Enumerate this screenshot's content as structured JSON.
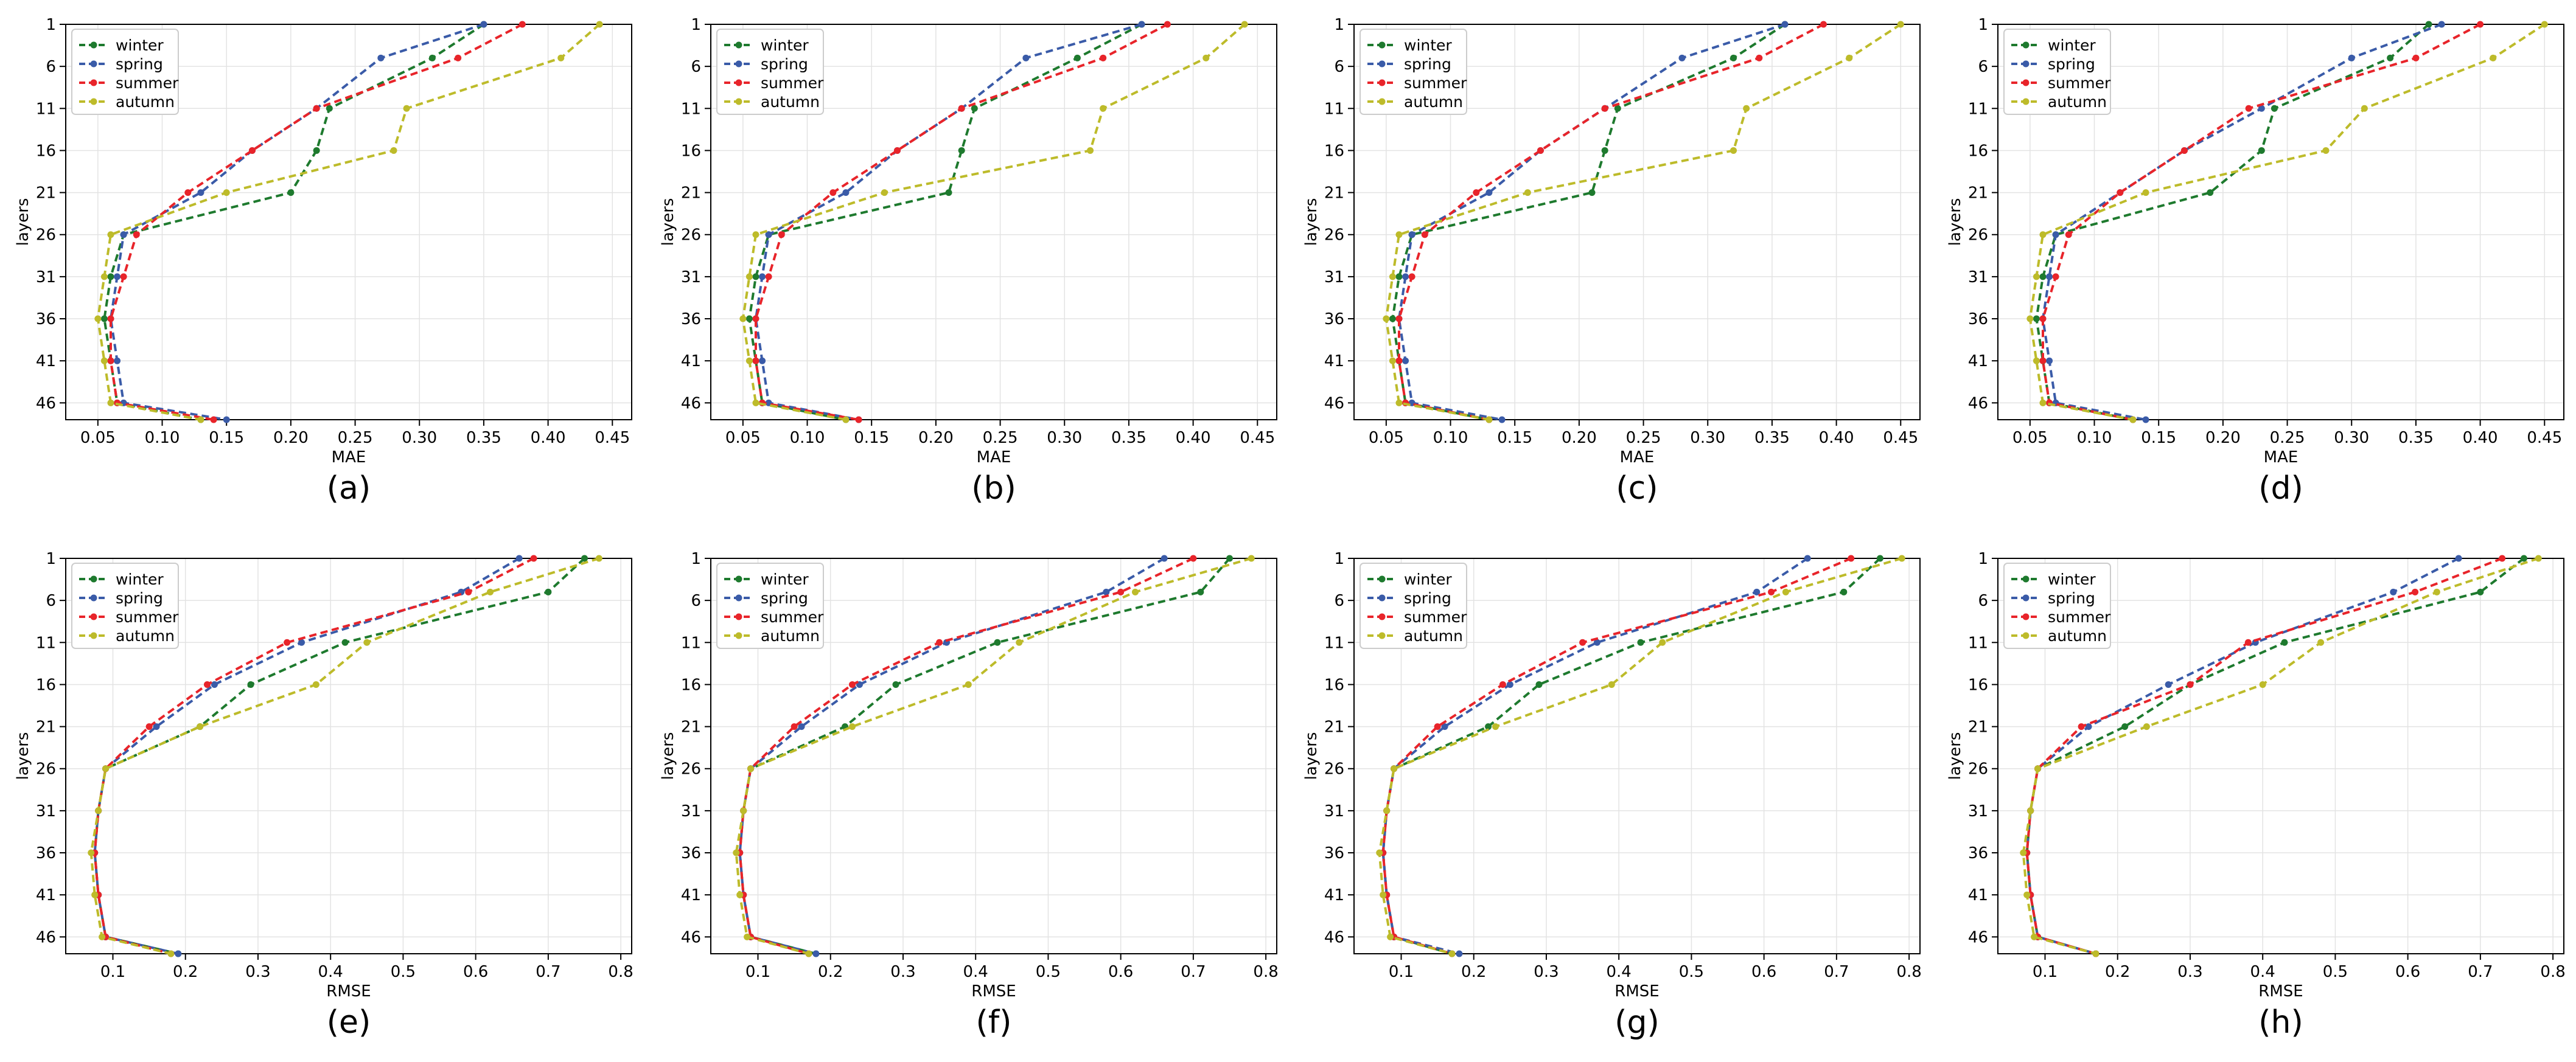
{
  "chart_data": [
    {
      "type": "line",
      "caption": "(a)",
      "xlabel": "MAE",
      "ylabel": "layers",
      "xlim": [
        0.025,
        0.465
      ],
      "xticks": [
        "0.05",
        "0.10",
        "0.15",
        "0.20",
        "0.25",
        "0.30",
        "0.35",
        "0.40",
        "0.45"
      ],
      "ylim": [
        1,
        48
      ],
      "yticks": [
        "1",
        "6",
        "11",
        "16",
        "21",
        "26",
        "31",
        "36",
        "41",
        "46"
      ],
      "legend": [
        "winter",
        "spring",
        "summer",
        "autumn"
      ],
      "x": [
        1,
        5,
        11,
        16,
        21,
        26,
        31,
        36,
        41,
        46,
        48
      ],
      "series": [
        {
          "name": "winter",
          "color": "#1e7a2e",
          "values": [
            0.35,
            0.31,
            0.23,
            0.22,
            0.2,
            0.07,
            0.06,
            0.055,
            0.06,
            0.065,
            0.13
          ]
        },
        {
          "name": "spring",
          "color": "#3a5ba8",
          "values": [
            0.35,
            0.27,
            0.22,
            0.17,
            0.13,
            0.07,
            0.065,
            0.06,
            0.065,
            0.07,
            0.15
          ]
        },
        {
          "name": "summer",
          "color": "#e8242a",
          "values": [
            0.38,
            0.33,
            0.22,
            0.17,
            0.12,
            0.08,
            0.07,
            0.06,
            0.06,
            0.065,
            0.14
          ]
        },
        {
          "name": "autumn",
          "color": "#bdbb2a",
          "values": [
            0.44,
            0.41,
            0.29,
            0.28,
            0.15,
            0.06,
            0.055,
            0.05,
            0.055,
            0.06,
            0.13
          ]
        }
      ]
    },
    {
      "type": "line",
      "caption": "(b)",
      "xlabel": "MAE",
      "ylabel": "layers",
      "xlim": [
        0.025,
        0.465
      ],
      "xticks": [
        "0.05",
        "0.10",
        "0.15",
        "0.20",
        "0.25",
        "0.30",
        "0.35",
        "0.40",
        "0.45"
      ],
      "ylim": [
        1,
        48
      ],
      "yticks": [
        "1",
        "6",
        "11",
        "16",
        "21",
        "26",
        "31",
        "36",
        "41",
        "46"
      ],
      "legend": [
        "winter",
        "spring",
        "summer",
        "autumn"
      ],
      "x": [
        1,
        5,
        11,
        16,
        21,
        26,
        31,
        36,
        41,
        46,
        48
      ],
      "series": [
        {
          "name": "winter",
          "color": "#1e7a2e",
          "values": [
            0.36,
            0.31,
            0.23,
            0.22,
            0.21,
            0.07,
            0.06,
            0.055,
            0.06,
            0.065,
            0.13
          ]
        },
        {
          "name": "spring",
          "color": "#3a5ba8",
          "values": [
            0.36,
            0.27,
            0.22,
            0.17,
            0.13,
            0.07,
            0.065,
            0.06,
            0.065,
            0.07,
            0.14
          ]
        },
        {
          "name": "summer",
          "color": "#e8242a",
          "values": [
            0.38,
            0.33,
            0.22,
            0.17,
            0.12,
            0.08,
            0.07,
            0.06,
            0.06,
            0.065,
            0.14
          ]
        },
        {
          "name": "autumn",
          "color": "#bdbb2a",
          "values": [
            0.44,
            0.41,
            0.33,
            0.32,
            0.16,
            0.06,
            0.055,
            0.05,
            0.055,
            0.06,
            0.13
          ]
        }
      ]
    },
    {
      "type": "line",
      "caption": "(c)",
      "xlabel": "MAE",
      "ylabel": "layers",
      "xlim": [
        0.025,
        0.465
      ],
      "xticks": [
        "0.05",
        "0.10",
        "0.15",
        "0.20",
        "0.25",
        "0.30",
        "0.35",
        "0.40",
        "0.45"
      ],
      "ylim": [
        1,
        48
      ],
      "yticks": [
        "1",
        "6",
        "11",
        "16",
        "21",
        "26",
        "31",
        "36",
        "41",
        "46"
      ],
      "legend": [
        "winter",
        "spring",
        "summer",
        "autumn"
      ],
      "x": [
        1,
        5,
        11,
        16,
        21,
        26,
        31,
        36,
        41,
        46,
        48
      ],
      "series": [
        {
          "name": "winter",
          "color": "#1e7a2e",
          "values": [
            0.36,
            0.32,
            0.23,
            0.22,
            0.21,
            0.07,
            0.06,
            0.055,
            0.06,
            0.065,
            0.13
          ]
        },
        {
          "name": "spring",
          "color": "#3a5ba8",
          "values": [
            0.36,
            0.28,
            0.22,
            0.17,
            0.13,
            0.07,
            0.065,
            0.06,
            0.065,
            0.07,
            0.14
          ]
        },
        {
          "name": "summer",
          "color": "#e8242a",
          "values": [
            0.39,
            0.34,
            0.22,
            0.17,
            0.12,
            0.08,
            0.07,
            0.06,
            0.06,
            0.065,
            0.13
          ]
        },
        {
          "name": "autumn",
          "color": "#bdbb2a",
          "values": [
            0.45,
            0.41,
            0.33,
            0.32,
            0.16,
            0.06,
            0.055,
            0.05,
            0.055,
            0.06,
            0.13
          ]
        }
      ]
    },
    {
      "type": "line",
      "caption": "(d)",
      "xlabel": "MAE",
      "ylabel": "layers",
      "xlim": [
        0.025,
        0.465
      ],
      "xticks": [
        "0.05",
        "0.10",
        "0.15",
        "0.20",
        "0.25",
        "0.30",
        "0.35",
        "0.40",
        "0.45"
      ],
      "ylim": [
        1,
        48
      ],
      "yticks": [
        "1",
        "6",
        "11",
        "16",
        "21",
        "26",
        "31",
        "36",
        "41",
        "46"
      ],
      "legend": [
        "winter",
        "spring",
        "summer",
        "autumn"
      ],
      "x": [
        1,
        5,
        11,
        16,
        21,
        26,
        31,
        36,
        41,
        46,
        48
      ],
      "series": [
        {
          "name": "winter",
          "color": "#1e7a2e",
          "values": [
            0.36,
            0.33,
            0.24,
            0.23,
            0.19,
            0.07,
            0.06,
            0.055,
            0.06,
            0.065,
            0.13
          ]
        },
        {
          "name": "spring",
          "color": "#3a5ba8",
          "values": [
            0.37,
            0.3,
            0.23,
            0.17,
            0.12,
            0.07,
            0.065,
            0.06,
            0.065,
            0.07,
            0.14
          ]
        },
        {
          "name": "summer",
          "color": "#e8242a",
          "values": [
            0.4,
            0.35,
            0.22,
            0.17,
            0.12,
            0.08,
            0.07,
            0.06,
            0.06,
            0.065,
            0.13
          ]
        },
        {
          "name": "autumn",
          "color": "#bdbb2a",
          "values": [
            0.45,
            0.41,
            0.31,
            0.28,
            0.14,
            0.06,
            0.055,
            0.05,
            0.055,
            0.06,
            0.13
          ]
        }
      ]
    },
    {
      "type": "line",
      "caption": "(e)",
      "xlabel": "RMSE",
      "ylabel": "layers",
      "xlim": [
        0.035,
        0.815
      ],
      "xticks": [
        "0.1",
        "0.2",
        "0.3",
        "0.4",
        "0.5",
        "0.6",
        "0.7",
        "0.8"
      ],
      "ylim": [
        1,
        48
      ],
      "yticks": [
        "1",
        "6",
        "11",
        "16",
        "21",
        "26",
        "31",
        "36",
        "41",
        "46"
      ],
      "legend": [
        "winter",
        "spring",
        "summer",
        "autumn"
      ],
      "x": [
        1,
        5,
        11,
        16,
        21,
        26,
        31,
        36,
        41,
        46,
        48
      ],
      "series": [
        {
          "name": "winter",
          "color": "#1e7a2e",
          "values": [
            0.75,
            0.7,
            0.42,
            0.29,
            0.22,
            0.09,
            0.08,
            0.075,
            0.08,
            0.09,
            0.19
          ]
        },
        {
          "name": "spring",
          "color": "#3a5ba8",
          "values": [
            0.66,
            0.58,
            0.36,
            0.24,
            0.16,
            0.09,
            0.08,
            0.075,
            0.08,
            0.09,
            0.19
          ]
        },
        {
          "name": "summer",
          "color": "#e8242a",
          "values": [
            0.68,
            0.59,
            0.34,
            0.23,
            0.15,
            0.09,
            0.08,
            0.075,
            0.08,
            0.09,
            0.18
          ]
        },
        {
          "name": "autumn",
          "color": "#bdbb2a",
          "values": [
            0.77,
            0.62,
            0.45,
            0.38,
            0.22,
            0.09,
            0.08,
            0.07,
            0.075,
            0.085,
            0.18
          ]
        }
      ]
    },
    {
      "type": "line",
      "caption": "(f)",
      "xlabel": "RMSE",
      "ylabel": "layers",
      "xlim": [
        0.035,
        0.815
      ],
      "xticks": [
        "0.1",
        "0.2",
        "0.3",
        "0.4",
        "0.5",
        "0.6",
        "0.7",
        "0.8"
      ],
      "ylim": [
        1,
        48
      ],
      "yticks": [
        "1",
        "6",
        "11",
        "16",
        "21",
        "26",
        "31",
        "36",
        "41",
        "46"
      ],
      "legend": [
        "winter",
        "spring",
        "summer",
        "autumn"
      ],
      "x": [
        1,
        5,
        11,
        16,
        21,
        26,
        31,
        36,
        41,
        46,
        48
      ],
      "series": [
        {
          "name": "winter",
          "color": "#1e7a2e",
          "values": [
            0.75,
            0.71,
            0.43,
            0.29,
            0.22,
            0.09,
            0.08,
            0.075,
            0.08,
            0.09,
            0.18
          ]
        },
        {
          "name": "spring",
          "color": "#3a5ba8",
          "values": [
            0.66,
            0.58,
            0.36,
            0.24,
            0.16,
            0.09,
            0.08,
            0.075,
            0.08,
            0.09,
            0.18
          ]
        },
        {
          "name": "summer",
          "color": "#e8242a",
          "values": [
            0.7,
            0.6,
            0.35,
            0.23,
            0.15,
            0.09,
            0.08,
            0.075,
            0.08,
            0.09,
            0.17
          ]
        },
        {
          "name": "autumn",
          "color": "#bdbb2a",
          "values": [
            0.78,
            0.62,
            0.46,
            0.39,
            0.23,
            0.09,
            0.08,
            0.07,
            0.075,
            0.085,
            0.17
          ]
        }
      ]
    },
    {
      "type": "line",
      "caption": "(g)",
      "xlabel": "RMSE",
      "ylabel": "layers",
      "xlim": [
        0.035,
        0.815
      ],
      "xticks": [
        "0.1",
        "0.2",
        "0.3",
        "0.4",
        "0.5",
        "0.6",
        "0.7",
        "0.8"
      ],
      "ylim": [
        1,
        48
      ],
      "yticks": [
        "1",
        "6",
        "11",
        "16",
        "21",
        "26",
        "31",
        "36",
        "41",
        "46"
      ],
      "legend": [
        "winter",
        "spring",
        "summer",
        "autumn"
      ],
      "x": [
        1,
        5,
        11,
        16,
        21,
        26,
        31,
        36,
        41,
        46,
        48
      ],
      "series": [
        {
          "name": "winter",
          "color": "#1e7a2e",
          "values": [
            0.76,
            0.71,
            0.43,
            0.29,
            0.22,
            0.09,
            0.08,
            0.075,
            0.08,
            0.09,
            0.17
          ]
        },
        {
          "name": "spring",
          "color": "#3a5ba8",
          "values": [
            0.66,
            0.59,
            0.37,
            0.25,
            0.16,
            0.09,
            0.08,
            0.075,
            0.08,
            0.09,
            0.18
          ]
        },
        {
          "name": "summer",
          "color": "#e8242a",
          "values": [
            0.72,
            0.61,
            0.35,
            0.24,
            0.15,
            0.09,
            0.08,
            0.075,
            0.08,
            0.09,
            0.17
          ]
        },
        {
          "name": "autumn",
          "color": "#bdbb2a",
          "values": [
            0.79,
            0.63,
            0.46,
            0.39,
            0.23,
            0.09,
            0.08,
            0.07,
            0.075,
            0.085,
            0.17
          ]
        }
      ]
    },
    {
      "type": "line",
      "caption": "(h)",
      "xlabel": "RMSE",
      "ylabel": "layers",
      "xlim": [
        0.035,
        0.815
      ],
      "xticks": [
        "0.1",
        "0.2",
        "0.3",
        "0.4",
        "0.5",
        "0.6",
        "0.7",
        "0.8"
      ],
      "ylim": [
        1,
        48
      ],
      "yticks": [
        "1",
        "6",
        "11",
        "16",
        "21",
        "26",
        "31",
        "36",
        "41",
        "46"
      ],
      "legend": [
        "winter",
        "spring",
        "summer",
        "autumn"
      ],
      "x": [
        1,
        5,
        11,
        16,
        21,
        26,
        31,
        36,
        41,
        46,
        48
      ],
      "series": [
        {
          "name": "winter",
          "color": "#1e7a2e",
          "values": [
            0.76,
            0.7,
            0.43,
            0.3,
            0.21,
            0.09,
            0.08,
            0.075,
            0.08,
            0.09,
            0.17
          ]
        },
        {
          "name": "spring",
          "color": "#3a5ba8",
          "values": [
            0.67,
            0.58,
            0.39,
            0.27,
            0.16,
            0.09,
            0.08,
            0.075,
            0.08,
            0.09,
            0.17
          ]
        },
        {
          "name": "summer",
          "color": "#e8242a",
          "values": [
            0.73,
            0.61,
            0.38,
            0.3,
            0.15,
            0.09,
            0.08,
            0.075,
            0.08,
            0.09,
            0.17
          ]
        },
        {
          "name": "autumn",
          "color": "#bdbb2a",
          "values": [
            0.78,
            0.64,
            0.48,
            0.4,
            0.24,
            0.09,
            0.08,
            0.07,
            0.075,
            0.085,
            0.17
          ]
        }
      ]
    }
  ]
}
